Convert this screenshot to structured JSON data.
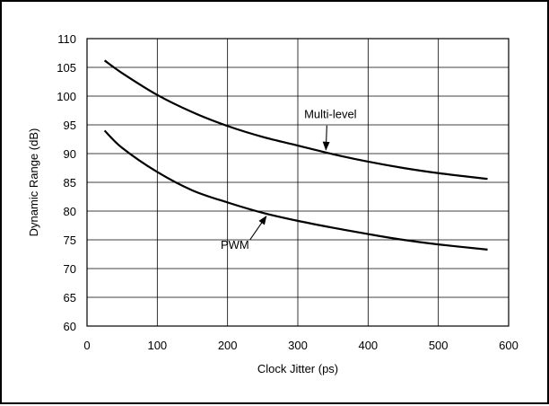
{
  "chart_data": {
    "type": "line",
    "title": "",
    "xlabel": "Clock Jitter (ps)",
    "ylabel": "Dynamic Range (dB)",
    "xlim": [
      0,
      600
    ],
    "ylim": [
      60,
      110
    ],
    "xticks": [
      0,
      100,
      200,
      300,
      400,
      500,
      600
    ],
    "yticks": [
      60,
      65,
      70,
      75,
      80,
      85,
      90,
      95,
      100,
      105,
      110
    ],
    "grid": true,
    "series": [
      {
        "name": "Multi-level",
        "x": [
          25,
          50,
          100,
          150,
          200,
          250,
          300,
          350,
          400,
          450,
          500,
          570
        ],
        "y": [
          106.2,
          104.0,
          100.2,
          97.2,
          94.8,
          92.9,
          91.4,
          89.9,
          88.6,
          87.5,
          86.6,
          85.6
        ]
      },
      {
        "name": "PWM",
        "x": [
          25,
          50,
          100,
          150,
          200,
          250,
          300,
          350,
          400,
          450,
          500,
          570
        ],
        "y": [
          94.0,
          91.0,
          86.8,
          83.6,
          81.5,
          79.7,
          78.3,
          77.1,
          76.0,
          75.0,
          74.2,
          73.3
        ]
      }
    ],
    "annotations": [
      {
        "text": "Multi-level",
        "series": "Multi-level",
        "points_to_x": 340
      },
      {
        "text": "PWM",
        "series": "PWM",
        "points_to_x": 255
      }
    ]
  }
}
